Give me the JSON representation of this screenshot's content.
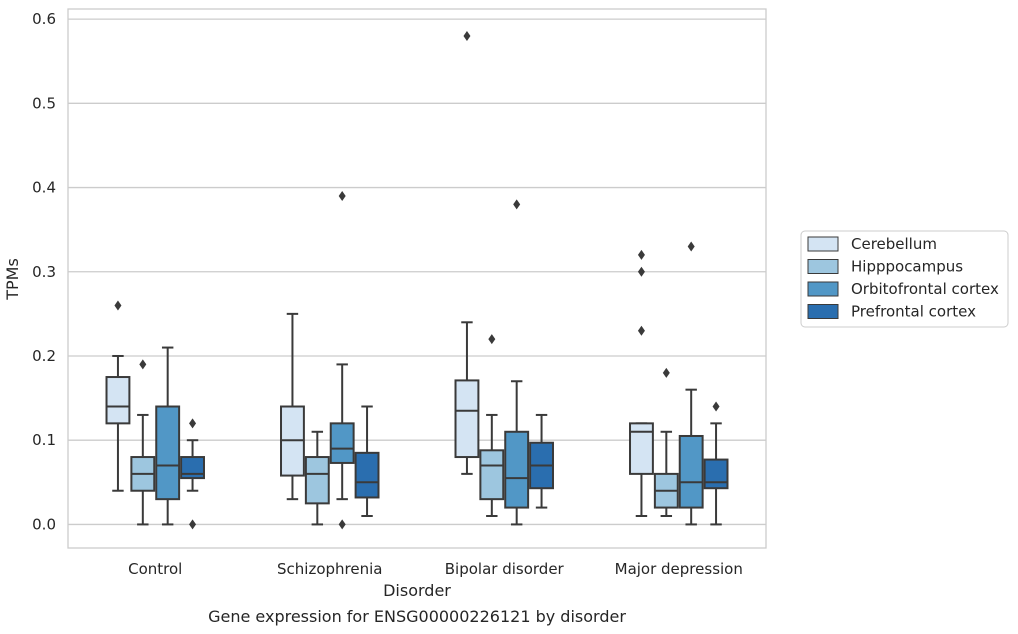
{
  "chart_data": {
    "type": "box",
    "title": "",
    "caption": "Gene expression for ENSG00000226121 by disorder",
    "xlabel": "Disorder",
    "ylabel": "TPMs",
    "ylim": [
      -0.028,
      0.612
    ],
    "yticks": [
      0.0,
      0.1,
      0.2,
      0.3,
      0.4,
      0.5,
      0.6
    ],
    "ytick_labels": [
      "0.0",
      "0.1",
      "0.2",
      "0.3",
      "0.4",
      "0.5",
      "0.6"
    ],
    "grid": "horizontal",
    "legend_position": "right",
    "categories": [
      "Control",
      "Schizophrenia",
      "Bipolar disorder",
      "Major depression"
    ],
    "series": [
      {
        "name": "Cerebellum",
        "color": "#d4e4f3",
        "boxes": [
          {
            "whisker_low": 0.04,
            "q1": 0.12,
            "median": 0.14,
            "q3": 0.175,
            "whisker_high": 0.2,
            "outliers": [
              0.26
            ]
          },
          {
            "whisker_low": 0.03,
            "q1": 0.058,
            "median": 0.1,
            "q3": 0.14,
            "whisker_high": 0.25,
            "outliers": []
          },
          {
            "whisker_low": 0.06,
            "q1": 0.08,
            "median": 0.135,
            "q3": 0.171,
            "whisker_high": 0.24,
            "outliers": [
              0.58
            ]
          },
          {
            "whisker_low": 0.01,
            "q1": 0.06,
            "median": 0.11,
            "q3": 0.12,
            "whisker_high": 0.12,
            "outliers": [
              0.23,
              0.3,
              0.32
            ]
          }
        ]
      },
      {
        "name": "Hipppocampus",
        "color": "#9dc6df",
        "boxes": [
          {
            "whisker_low": 0.0,
            "q1": 0.04,
            "median": 0.06,
            "q3": 0.08,
            "whisker_high": 0.13,
            "outliers": [
              0.19
            ]
          },
          {
            "whisker_low": 0.0,
            "q1": 0.025,
            "median": 0.06,
            "q3": 0.08,
            "whisker_high": 0.11,
            "outliers": []
          },
          {
            "whisker_low": 0.01,
            "q1": 0.03,
            "median": 0.07,
            "q3": 0.088,
            "whisker_high": 0.13,
            "outliers": [
              0.22
            ]
          },
          {
            "whisker_low": 0.01,
            "q1": 0.02,
            "median": 0.04,
            "q3": 0.06,
            "whisker_high": 0.11,
            "outliers": [
              0.18
            ]
          }
        ]
      },
      {
        "name": "Orbitofrontal cortex",
        "color": "#5197c6",
        "boxes": [
          {
            "whisker_low": 0.0,
            "q1": 0.03,
            "median": 0.07,
            "q3": 0.14,
            "whisker_high": 0.21,
            "outliers": []
          },
          {
            "whisker_low": 0.03,
            "q1": 0.073,
            "median": 0.09,
            "q3": 0.12,
            "whisker_high": 0.19,
            "outliers": [
              0.0,
              0.39
            ]
          },
          {
            "whisker_low": 0.0,
            "q1": 0.02,
            "median": 0.055,
            "q3": 0.11,
            "whisker_high": 0.17,
            "outliers": [
              0.38
            ]
          },
          {
            "whisker_low": 0.0,
            "q1": 0.02,
            "median": 0.05,
            "q3": 0.105,
            "whisker_high": 0.16,
            "outliers": [
              0.33
            ]
          }
        ]
      },
      {
        "name": "Prefrontal cortex",
        "color": "#2a6eaf",
        "boxes": [
          {
            "whisker_low": 0.04,
            "q1": 0.055,
            "median": 0.06,
            "q3": 0.08,
            "whisker_high": 0.1,
            "outliers": [
              0.0,
              0.12
            ]
          },
          {
            "whisker_low": 0.01,
            "q1": 0.032,
            "median": 0.05,
            "q3": 0.085,
            "whisker_high": 0.14,
            "outliers": []
          },
          {
            "whisker_low": 0.02,
            "q1": 0.043,
            "median": 0.07,
            "q3": 0.097,
            "whisker_high": 0.13,
            "outliers": []
          },
          {
            "whisker_low": 0.0,
            "q1": 0.043,
            "median": 0.05,
            "q3": 0.077,
            "whisker_high": 0.12,
            "outliers": [
              0.14
            ]
          }
        ]
      }
    ]
  }
}
